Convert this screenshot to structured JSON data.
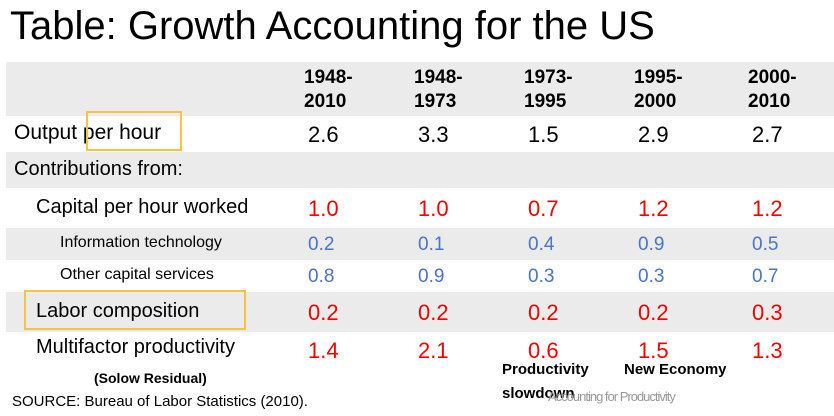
{
  "title": "Table: Growth Accounting for the US",
  "columns": [
    "1948-2010",
    "1948-1973",
    "1973-1995",
    "1995-2000",
    "2000-2010"
  ],
  "columns_split": [
    [
      "1948-",
      "2010"
    ],
    [
      "1948-",
      "1973"
    ],
    [
      "1973-",
      "1995"
    ],
    [
      "1995-",
      "2000"
    ],
    [
      "2000-",
      "2010"
    ]
  ],
  "rows": [
    {
      "label_a": "Output ",
      "label_b": "per hour",
      "values": [
        "2.6",
        "3.3",
        "1.5",
        "2.9",
        "2.7"
      ],
      "color": "#000000"
    },
    {
      "label": "Contributions from:",
      "values": []
    },
    {
      "label": "Capital per hour worked",
      "values": [
        "1.0",
        "1.0",
        "0.7",
        "1.2",
        "1.2"
      ],
      "color": "#ee0000"
    },
    {
      "label": "Information technology",
      "values": [
        "0.2",
        "0.1",
        "0.4",
        "0.9",
        "0.5"
      ],
      "color": "#4a74c4"
    },
    {
      "label": "Other capital services",
      "values": [
        "0.8",
        "0.9",
        "0.3",
        "0.3",
        "0.7"
      ],
      "color": "#4a74c4"
    },
    {
      "label": "Labor composition",
      "values": [
        "0.2",
        "0.2",
        "0.2",
        "0.2",
        "0.3"
      ],
      "color": "#ee0000"
    },
    {
      "label": "Multifactor productivity",
      "values": [
        "1.4",
        "2.1",
        "0.6",
        "1.5",
        "1.3"
      ],
      "color": "#ee0000"
    }
  ],
  "notes": {
    "solow": "(Solow Residual)",
    "productivity": "Productivity",
    "slowdown": "slowdown",
    "new_economy": "New Economy",
    "faint_text": "Accounting for Productivity"
  },
  "source": "SOURCE: Bureau of Labor Statistics (2010).",
  "colors": {
    "highlight_box": "#f6c342",
    "shade": "#ebebeb",
    "red": "#ee0000",
    "blue": "#4a74c4"
  }
}
